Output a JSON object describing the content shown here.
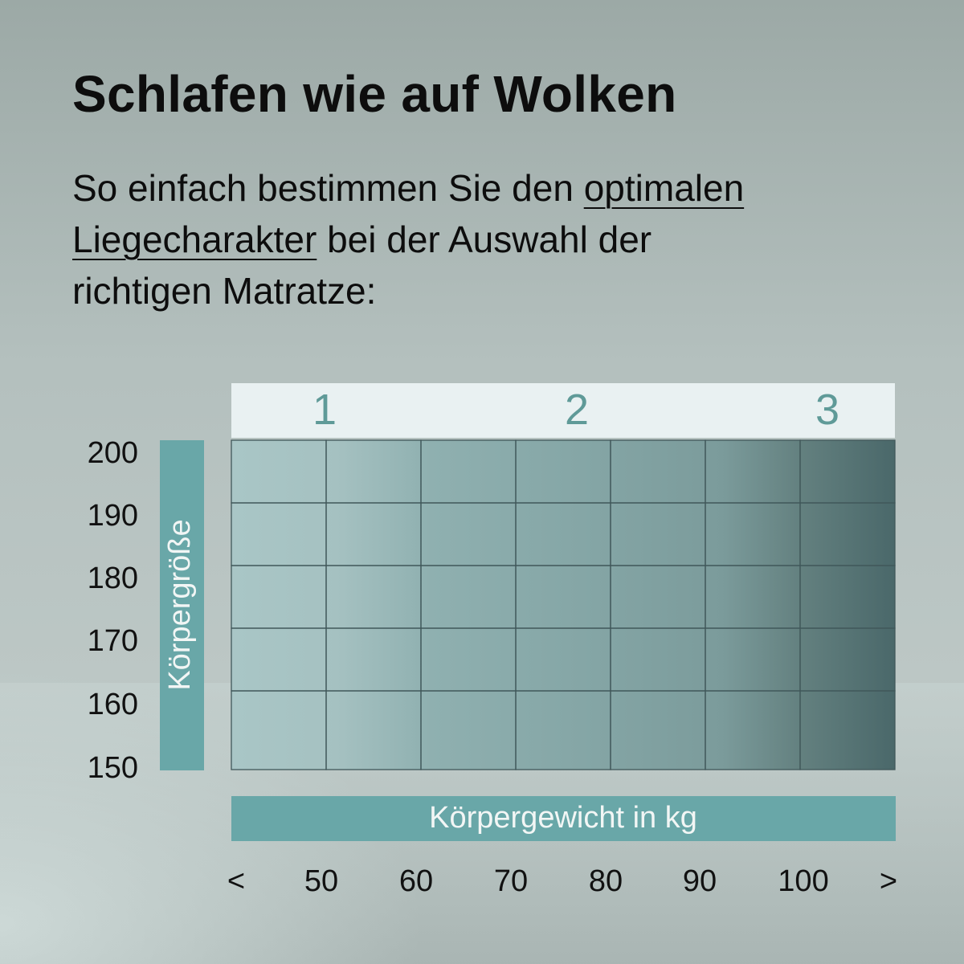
{
  "heading": {
    "title": "Schlafen wie auf Wolken",
    "subtitle_part1": "So einfach bestimmen Sie den ",
    "subtitle_link": "optimalen Liegecharakter",
    "subtitle_part2": " bei der Auswahl der richtigen Matratze:"
  },
  "colors": {
    "accent": "#69a7a8",
    "zone_label": "#5f9a98",
    "header_band": "#e9f1f2",
    "grid_line": "#41585a",
    "cell_light": "#a6c4c4",
    "cell_dark": "#4a696b"
  },
  "chart_data": {
    "type": "heatmap",
    "title": "",
    "xlabel": "Körpergewicht in kg",
    "ylabel": "Körpergröße",
    "x_ticks": [
      "<",
      "50",
      "60",
      "70",
      "80",
      "90",
      "100",
      ">"
    ],
    "y_ticks": [
      "200",
      "190",
      "180",
      "170",
      "160",
      "150"
    ],
    "zones": [
      "1",
      "2",
      "3"
    ],
    "columns": 7,
    "rows": 5
  }
}
